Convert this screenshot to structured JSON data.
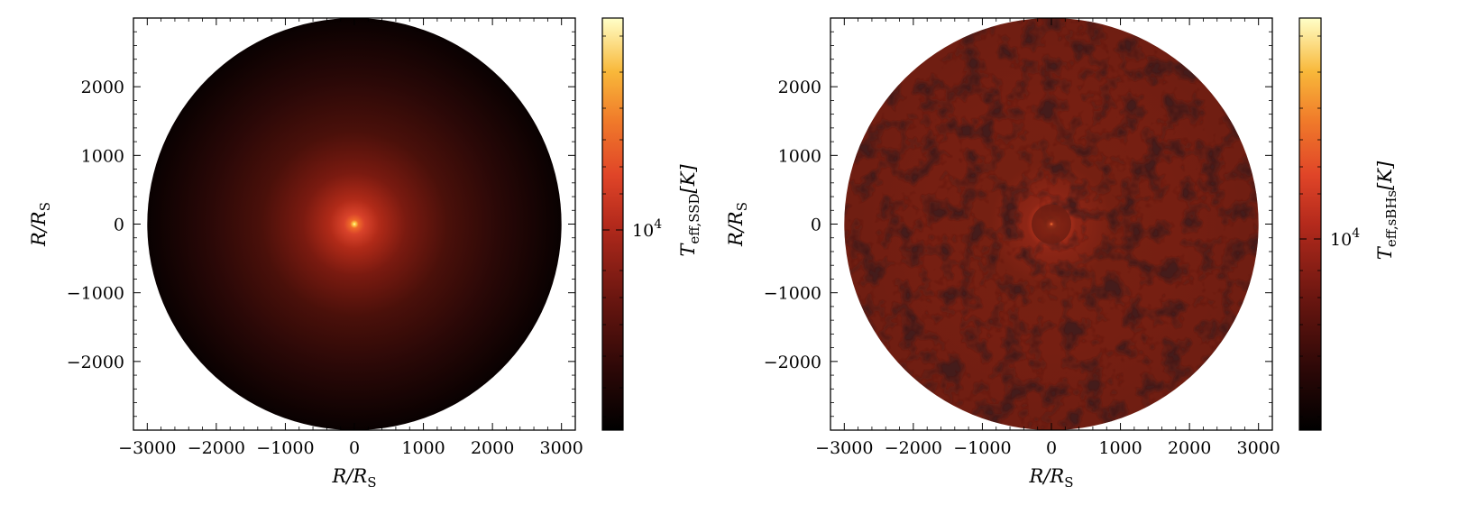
{
  "chart_data": [
    {
      "type": "heatmap",
      "panel": "left",
      "xlabel": "R/R_S",
      "ylabel": "R/R_S",
      "xlim": [
        -3200,
        3200
      ],
      "ylim": [
        -3000,
        3000
      ],
      "xticks": [
        -3000,
        -2000,
        -1000,
        0,
        1000,
        2000,
        3000
      ],
      "xtick_labels": [
        "−3000",
        "−2000",
        "−1000",
        "0",
        "1000",
        "2000",
        "3000"
      ],
      "yticks": [
        2000,
        1000,
        0,
        -1000,
        -2000
      ],
      "ytick_labels": [
        "2000",
        "1000",
        "0",
        "−1000",
        "−2000"
      ],
      "disk_radius": 3000,
      "texture": "smooth",
      "colorbar": {
        "label_main": "T",
        "label_sub": "eff,SSD",
        "label_unit": "[K]",
        "scale": "log",
        "tick_value": 10000,
        "tick_base": "10",
        "tick_exp": "4",
        "colormap": "hot-dark-red-yellow"
      }
    },
    {
      "type": "heatmap",
      "panel": "right",
      "xlabel": "R/R_S",
      "ylabel": "R/R_S",
      "xlim": [
        -3200,
        3200
      ],
      "ylim": [
        -3000,
        3000
      ],
      "xticks": [
        -3000,
        -2000,
        -1000,
        0,
        1000,
        2000,
        3000
      ],
      "xtick_labels": [
        "−3000",
        "−2000",
        "−1000",
        "0",
        "1000",
        "2000",
        "3000"
      ],
      "yticks": [
        2000,
        1000,
        0,
        -1000,
        -2000
      ],
      "ytick_labels": [
        "2000",
        "1000",
        "0",
        "−1000",
        "−2000"
      ],
      "disk_radius": 3000,
      "texture": "mottled",
      "colorbar": {
        "label_main": "T",
        "label_sub": "eff,sBHs",
        "label_unit": "[K]",
        "scale": "log",
        "tick_value": 10000,
        "tick_base": "10",
        "tick_exp": "4",
        "colormap": "hot-dark-red-yellow"
      }
    }
  ]
}
